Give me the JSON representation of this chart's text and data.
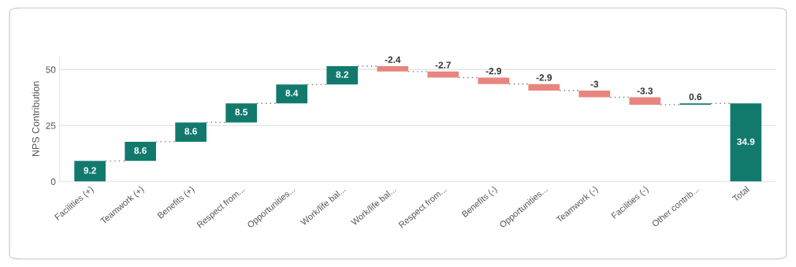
{
  "chart_data": {
    "type": "bar",
    "ylabel": "NPS Contribution",
    "categories": [
      "Facilities (+)",
      "Teamwork (+)",
      "Benefits (+)",
      "Respect from...",
      "Opportunities...",
      "Work/life bal...",
      "Work/life bal...",
      "Respect from...",
      "Benefits (-)",
      "Opportunities...",
      "Teamwork (-)",
      "Facilities (-)",
      "Other contrib...",
      "Total"
    ],
    "values": [
      9.2,
      8.6,
      8.6,
      8.5,
      8.4,
      8.2,
      -2.4,
      -2.7,
      -2.9,
      -2.9,
      -3,
      -3.3,
      0.6,
      34.9
    ],
    "base": [
      0,
      9.2,
      17.8,
      26.4,
      34.9,
      43.3,
      51.5,
      49.1,
      46.4,
      43.5,
      40.6,
      37.6,
      34.3,
      0
    ],
    "colors": [
      "#127a6d",
      "#127a6d",
      "#127a6d",
      "#127a6d",
      "#127a6d",
      "#127a6d",
      "#e8857e",
      "#e8857e",
      "#e8857e",
      "#e8857e",
      "#e8857e",
      "#e8857e",
      "#127a6d",
      "#127a6d"
    ],
    "ylim": [
      0,
      56
    ],
    "yticks": [
      0,
      25,
      50
    ],
    "grid": "y",
    "data_labels": true
  }
}
